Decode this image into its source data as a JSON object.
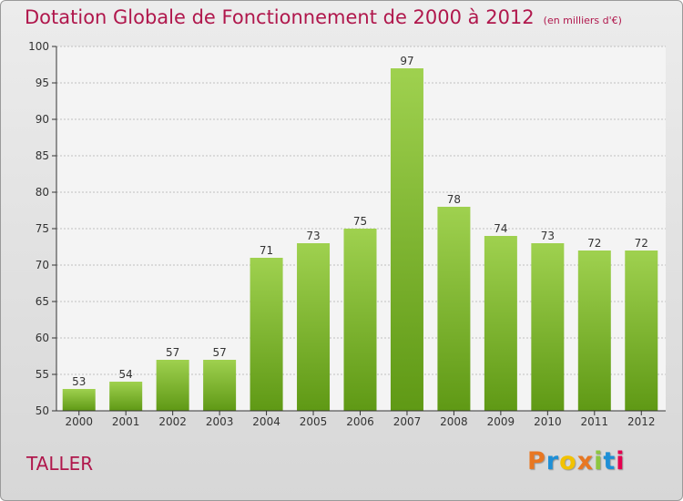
{
  "header": {
    "title": "Dotation Globale de Fonctionnement de 2000 à 2012",
    "subtitle": "(en milliers d'€)"
  },
  "footer": {
    "commune": "TALLER",
    "brand": "Proxiti",
    "brand_colors": [
      "#e87722",
      "#1e8fd6",
      "#f2c200",
      "#e87722",
      "#8dc63f",
      "#1e8fd6",
      "#e5004f"
    ]
  },
  "colors": {
    "title": "#b0174c",
    "bar_top": "#9fd14f",
    "bar_bottom": "#5f9915",
    "grid": "#bfbfbf",
    "axis": "#333333"
  },
  "chart_data": {
    "type": "bar",
    "categories": [
      "2000",
      "2001",
      "2002",
      "2003",
      "2004",
      "2005",
      "2006",
      "2007",
      "2008",
      "2009",
      "2010",
      "2011",
      "2012"
    ],
    "values": [
      53,
      54,
      57,
      57,
      71,
      73,
      75,
      97,
      78,
      74,
      73,
      72,
      72
    ],
    "ylim": [
      50,
      100
    ],
    "yticks": [
      50,
      55,
      60,
      65,
      70,
      75,
      80,
      85,
      90,
      95,
      100
    ],
    "grid": true,
    "title": "Dotation Globale de Fonctionnement de 2000 à 2012",
    "subtitle": "(en milliers d'€)",
    "xlabel": "",
    "ylabel": ""
  }
}
